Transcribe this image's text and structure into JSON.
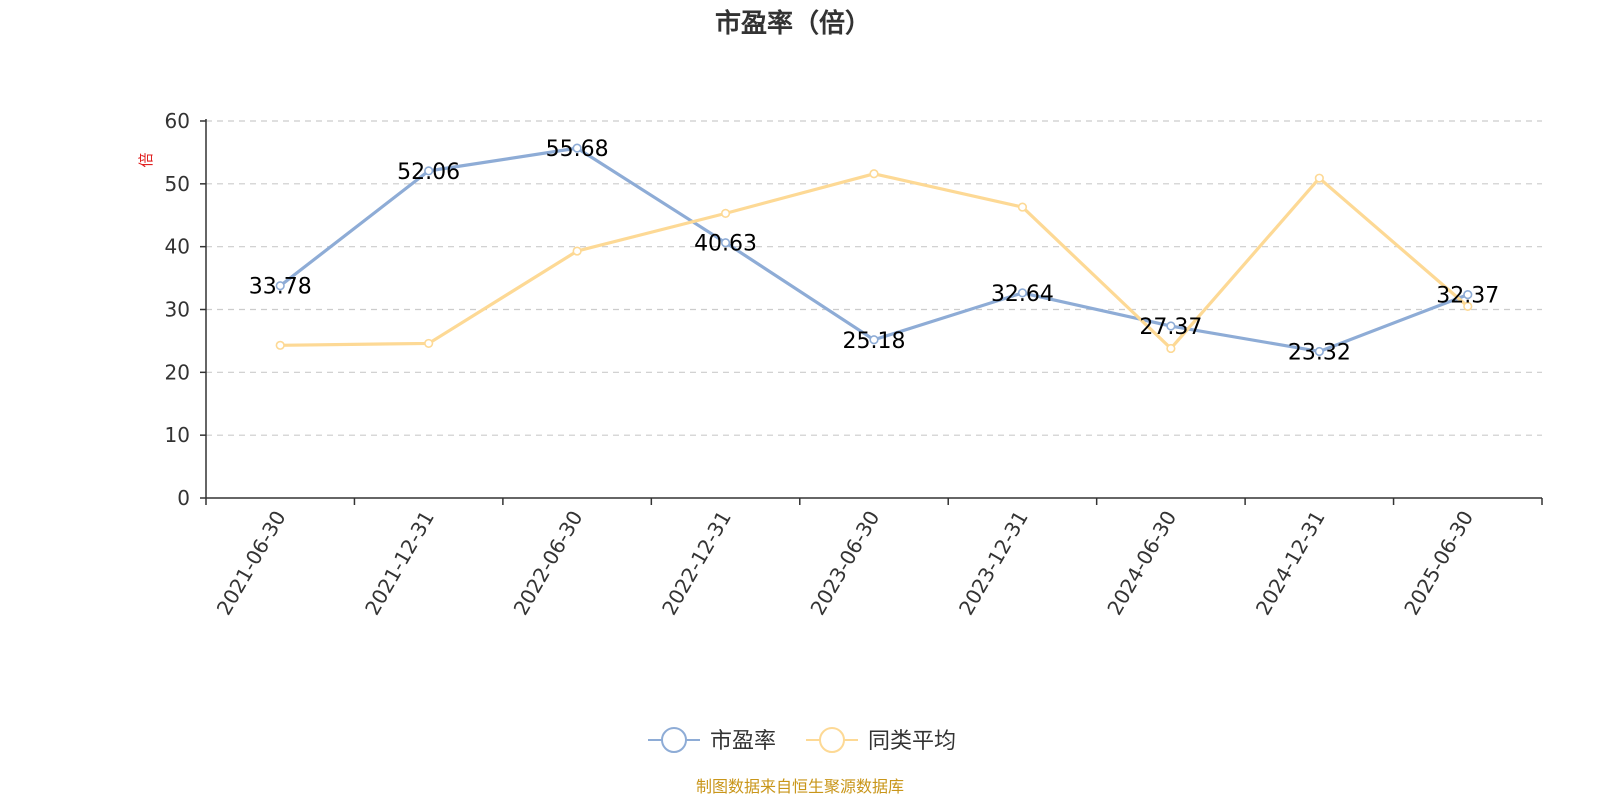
{
  "chart_data": {
    "type": "line",
    "title": "市盈率（倍）",
    "ylabel": "倍",
    "ylim": [
      0,
      60
    ],
    "yticks": [
      0,
      10,
      20,
      30,
      40,
      50,
      60
    ],
    "categories": [
      "2021-06-30",
      "2021-12-31",
      "2022-06-30",
      "2022-12-31",
      "2023-06-30",
      "2023-12-31",
      "2024-06-30",
      "2024-12-31",
      "2025-06-30"
    ],
    "series": [
      {
        "name": "市盈率",
        "color": "#8eacd6",
        "values": [
          33.78,
          52.06,
          55.68,
          40.63,
          25.18,
          32.64,
          27.37,
          23.32,
          32.37
        ],
        "labels": [
          "33.78",
          "52.06",
          "55.68",
          "40.63",
          "25.18",
          "32.64",
          "27.37",
          "23.32",
          "32.37"
        ]
      },
      {
        "name": "同类平均",
        "color": "#fdd995",
        "values": [
          24.3,
          24.6,
          39.3,
          45.3,
          51.6,
          46.3,
          23.8,
          50.9,
          30.5
        ]
      }
    ],
    "grid": true,
    "legend_position": "bottom-center"
  },
  "source": "制图数据来自恒生聚源数据库"
}
